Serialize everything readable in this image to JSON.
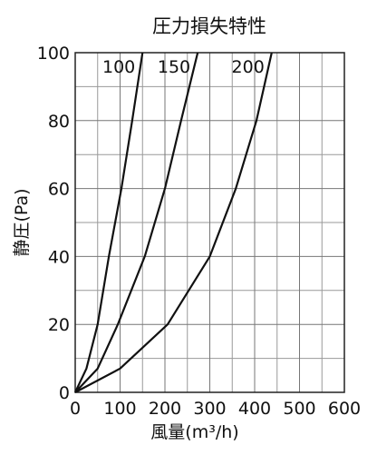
{
  "chart_data": {
    "type": "line",
    "title": "圧力損失特性",
    "x_label": "風量(m³/h)",
    "y_label": "静圧(Pa)",
    "series": [
      {
        "name": "100",
        "color": "#111111",
        "x": [
          0,
          25,
          50,
          75,
          103,
          127,
          150
        ],
        "values": [
          0,
          7,
          20,
          40,
          60,
          80,
          100
        ]
      },
      {
        "name": "150",
        "color": "#111111",
        "x": [
          0,
          50,
          95,
          155,
          200,
          236,
          273
        ],
        "values": [
          0,
          7,
          20,
          40,
          60,
          80,
          100
        ]
      },
      {
        "name": "200",
        "color": "#111111",
        "x": [
          0,
          100,
          206,
          300,
          358,
          404,
          438
        ],
        "values": [
          0,
          7,
          20,
          40,
          60,
          80,
          100
        ]
      }
    ],
    "xlim": [
      0,
      600
    ],
    "ylim": [
      0,
      100
    ],
    "xticks": [
      0,
      100,
      200,
      300,
      400,
      500,
      600
    ],
    "yticks": [
      0,
      20,
      40,
      60,
      80,
      100
    ],
    "grid": true
  }
}
